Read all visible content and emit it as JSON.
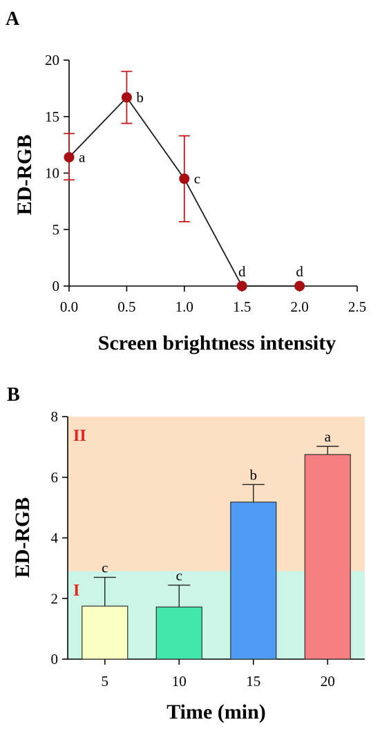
{
  "chart_data": [
    {
      "panel_label": "A",
      "type": "line",
      "xlabel": "Screen brightness intensity",
      "ylabel": "ED-RGB",
      "xlim": [
        0,
        2.5
      ],
      "ylim": [
        0,
        20
      ],
      "xticks": [
        "0.0",
        "0.5",
        "1.0",
        "1.5",
        "2.0",
        "2.5"
      ],
      "yticks": [
        "0",
        "5",
        "10",
        "15",
        "20"
      ],
      "grid": false,
      "points": [
        {
          "x": 0.0,
          "y": 11.4,
          "err_low": 9.4,
          "err_high": 13.5,
          "label": "a"
        },
        {
          "x": 0.5,
          "y": 16.7,
          "err_low": 14.4,
          "err_high": 19.0,
          "label": "b"
        },
        {
          "x": 1.0,
          "y": 9.5,
          "err_low": 5.7,
          "err_high": 13.3,
          "label": "c"
        },
        {
          "x": 1.5,
          "y": 0.0,
          "err_low": 0.0,
          "err_high": 0.0,
          "label": "d"
        },
        {
          "x": 2.0,
          "y": 0.0,
          "err_low": 0.0,
          "err_high": 0.0,
          "label": "d"
        }
      ],
      "colors": {
        "marker": "#a80f12",
        "errorbar": "#c8181c",
        "line": "#1a1a1a"
      }
    },
    {
      "panel_label": "B",
      "type": "bar",
      "xlabel": "Time (min)",
      "ylabel": "ED-RGB",
      "ylim": [
        0,
        8
      ],
      "yticks": [
        "0",
        "2",
        "4",
        "6",
        "8"
      ],
      "grid": false,
      "categories": [
        "5",
        "10",
        "15",
        "20"
      ],
      "values": [
        1.75,
        1.72,
        5.18,
        6.75
      ],
      "errors": [
        0.95,
        0.72,
        0.58,
        0.27
      ],
      "labels": [
        "c",
        "c",
        "b",
        "a"
      ],
      "colors": {
        "bars": [
          "#f8ffc0",
          "#42e8aa",
          "#4f9cf5",
          "#f57e7f"
        ],
        "bar_edge": "#333333"
      },
      "zones": [
        {
          "label": "I",
          "from": 0,
          "to": 2.9,
          "color": "#cbf5e6"
        },
        {
          "label": "II",
          "from": 2.9,
          "to": 8,
          "color": "#fde0c3"
        }
      ]
    }
  ]
}
